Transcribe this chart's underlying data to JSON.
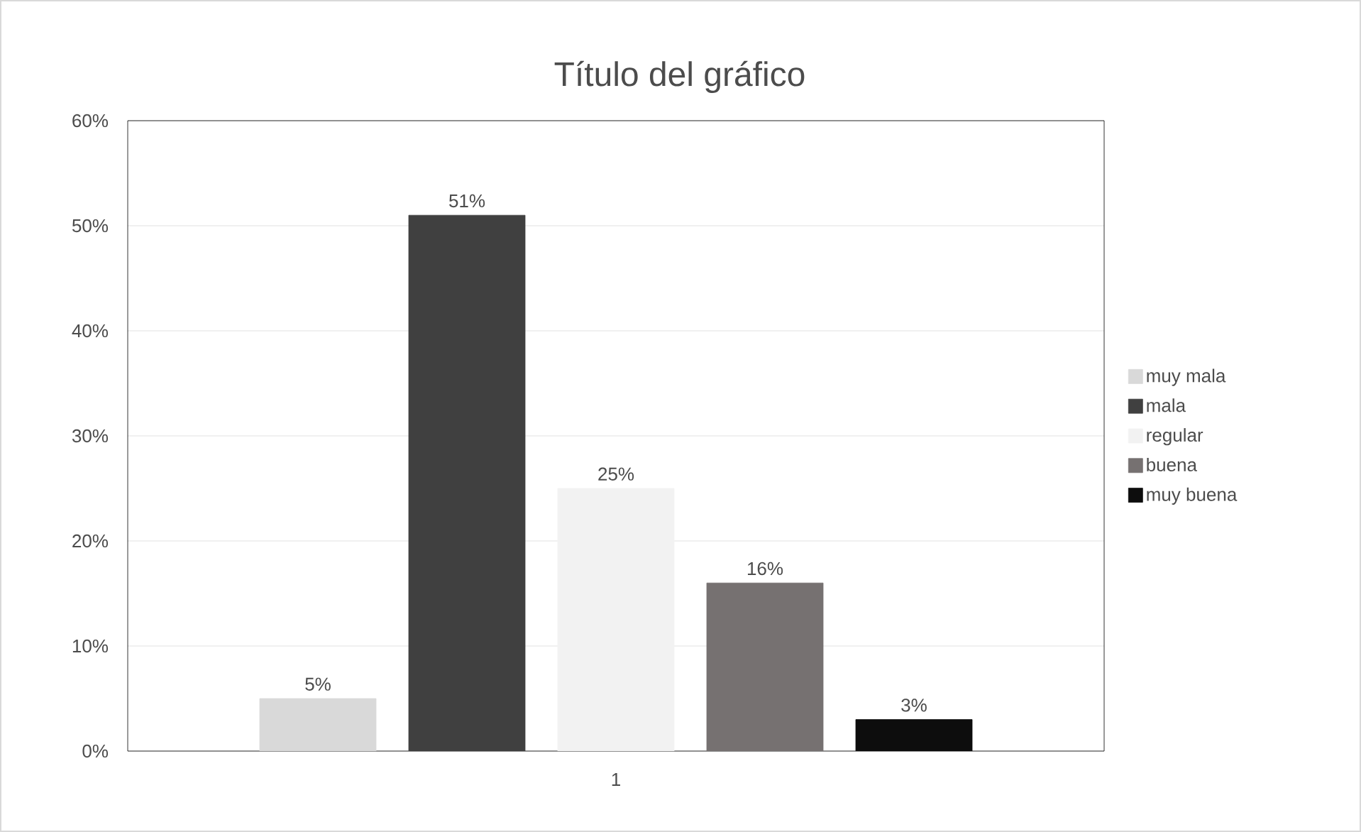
{
  "chart_data": {
    "type": "bar",
    "title": "Título del gráfico",
    "categories": [
      "1"
    ],
    "series": [
      {
        "name": "muy mala",
        "color": "#d9d9d9",
        "values": [
          5
        ],
        "value_labels": [
          "5%"
        ]
      },
      {
        "name": "mala",
        "color": "#404040",
        "values": [
          51
        ],
        "value_labels": [
          "51%"
        ]
      },
      {
        "name": "regular",
        "color": "#f2f2f2",
        "values": [
          25
        ],
        "value_labels": [
          "25%"
        ]
      },
      {
        "name": "buena",
        "color": "#767171",
        "values": [
          16
        ],
        "value_labels": [
          "16%"
        ]
      },
      {
        "name": "muy buena",
        "color": "#0d0d0d",
        "values": [
          3
        ],
        "value_labels": [
          "3%"
        ]
      }
    ],
    "ylim": [
      0,
      60
    ],
    "yticks": [
      {
        "value": 0,
        "label": "0%"
      },
      {
        "value": 10,
        "label": "10%"
      },
      {
        "value": 20,
        "label": "20%"
      },
      {
        "value": 30,
        "label": "30%"
      },
      {
        "value": 40,
        "label": "40%"
      },
      {
        "value": 50,
        "label": "50%"
      },
      {
        "value": 60,
        "label": "60%"
      }
    ],
    "grid": "y",
    "legend": "right"
  }
}
